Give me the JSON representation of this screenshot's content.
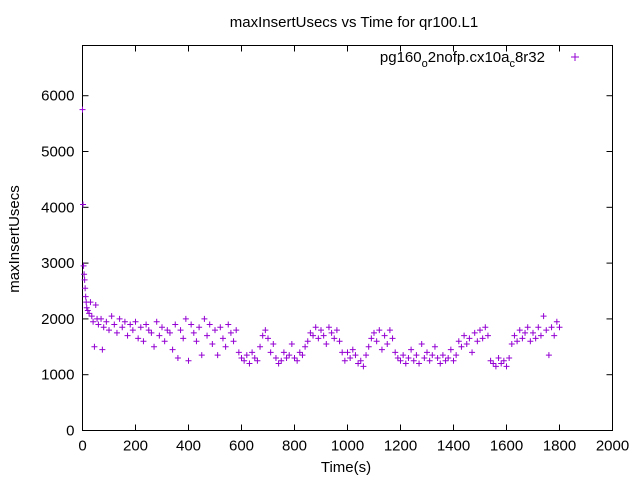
{
  "chart_data": {
    "type": "scatter",
    "title": "maxInsertUsecs vs Time for qr100.L1",
    "xlabel": "Time(s)",
    "ylabel": "maxInsertUsecs",
    "xlim": [
      0,
      2000
    ],
    "ylim": [
      0,
      6900
    ],
    "xticks": [
      0,
      200,
      400,
      600,
      800,
      1000,
      1200,
      1400,
      1600,
      1800,
      2000
    ],
    "yticks": [
      0,
      1000,
      2000,
      3000,
      4000,
      5000,
      6000
    ],
    "grid": false,
    "legend_position": "top-right",
    "marker": "plus",
    "series": [
      {
        "name_parts": [
          "pg160",
          "o",
          "2nofp.cx10a",
          "c",
          "8r32"
        ],
        "color": "#9400d3",
        "points": [
          [
            0,
            5750
          ],
          [
            2,
            4050
          ],
          [
            4,
            2950
          ],
          [
            6,
            2800
          ],
          [
            8,
            2700
          ],
          [
            10,
            2550
          ],
          [
            12,
            2400
          ],
          [
            14,
            2300
          ],
          [
            16,
            2200
          ],
          [
            20,
            2150
          ],
          [
            25,
            2100
          ],
          [
            30,
            2300
          ],
          [
            35,
            2050
          ],
          [
            40,
            1950
          ],
          [
            45,
            1500
          ],
          [
            50,
            2250
          ],
          [
            55,
            2000
          ],
          [
            60,
            1900
          ],
          [
            70,
            2000
          ],
          [
            75,
            1450
          ],
          [
            80,
            1850
          ],
          [
            90,
            1950
          ],
          [
            100,
            1800
          ],
          [
            110,
            2050
          ],
          [
            120,
            1900
          ],
          [
            130,
            1750
          ],
          [
            140,
            2000
          ],
          [
            150,
            1850
          ],
          [
            160,
            1950
          ],
          [
            170,
            1700
          ],
          [
            180,
            1900
          ],
          [
            190,
            1800
          ],
          [
            200,
            1950
          ],
          [
            210,
            1650
          ],
          [
            220,
            1850
          ],
          [
            230,
            1600
          ],
          [
            240,
            1900
          ],
          [
            250,
            1800
          ],
          [
            260,
            1750
          ],
          [
            270,
            1500
          ],
          [
            280,
            1950
          ],
          [
            290,
            1700
          ],
          [
            300,
            1850
          ],
          [
            310,
            1600
          ],
          [
            320,
            1800
          ],
          [
            330,
            1750
          ],
          [
            340,
            1450
          ],
          [
            350,
            1900
          ],
          [
            360,
            1300
          ],
          [
            370,
            1800
          ],
          [
            380,
            1650
          ],
          [
            390,
            2000
          ],
          [
            400,
            1250
          ],
          [
            410,
            1900
          ],
          [
            420,
            1750
          ],
          [
            430,
            1600
          ],
          [
            440,
            1850
          ],
          [
            450,
            1350
          ],
          [
            460,
            2000
          ],
          [
            470,
            1700
          ],
          [
            480,
            1900
          ],
          [
            490,
            1550
          ],
          [
            500,
            1800
          ],
          [
            510,
            1350
          ],
          [
            520,
            1850
          ],
          [
            530,
            1650
          ],
          [
            540,
            1500
          ],
          [
            550,
            1900
          ],
          [
            560,
            1750
          ],
          [
            570,
            1600
          ],
          [
            580,
            1800
          ],
          [
            590,
            1400
          ],
          [
            600,
            1300
          ],
          [
            610,
            1250
          ],
          [
            620,
            1350
          ],
          [
            630,
            1200
          ],
          [
            640,
            1400
          ],
          [
            650,
            1300
          ],
          [
            660,
            1250
          ],
          [
            670,
            1500
          ],
          [
            680,
            1700
          ],
          [
            690,
            1800
          ],
          [
            700,
            1650
          ],
          [
            710,
            1400
          ],
          [
            720,
            1550
          ],
          [
            730,
            1300
          ],
          [
            740,
            1200
          ],
          [
            750,
            1250
          ],
          [
            760,
            1400
          ],
          [
            770,
            1300
          ],
          [
            780,
            1350
          ],
          [
            790,
            1550
          ],
          [
            800,
            1300
          ],
          [
            810,
            1250
          ],
          [
            820,
            1400
          ],
          [
            830,
            1350
          ],
          [
            840,
            1500
          ],
          [
            850,
            1600
          ],
          [
            860,
            1750
          ],
          [
            870,
            1700
          ],
          [
            880,
            1850
          ],
          [
            890,
            1650
          ],
          [
            900,
            1800
          ],
          [
            910,
            1700
          ],
          [
            920,
            1550
          ],
          [
            930,
            1850
          ],
          [
            940,
            1750
          ],
          [
            950,
            1650
          ],
          [
            960,
            1800
          ],
          [
            970,
            1600
          ],
          [
            980,
            1400
          ],
          [
            990,
            1250
          ],
          [
            1000,
            1400
          ],
          [
            1010,
            1300
          ],
          [
            1020,
            1450
          ],
          [
            1030,
            1350
          ],
          [
            1040,
            1200
          ],
          [
            1050,
            1250
          ],
          [
            1060,
            1150
          ],
          [
            1070,
            1350
          ],
          [
            1080,
            1500
          ],
          [
            1090,
            1650
          ],
          [
            1100,
            1750
          ],
          [
            1110,
            1600
          ],
          [
            1120,
            1800
          ],
          [
            1130,
            1450
          ],
          [
            1140,
            1700
          ],
          [
            1150,
            1550
          ],
          [
            1160,
            1800
          ],
          [
            1170,
            1650
          ],
          [
            1180,
            1400
          ],
          [
            1190,
            1300
          ],
          [
            1200,
            1250
          ],
          [
            1210,
            1350
          ],
          [
            1220,
            1200
          ],
          [
            1230,
            1300
          ],
          [
            1240,
            1450
          ],
          [
            1250,
            1250
          ],
          [
            1260,
            1350
          ],
          [
            1270,
            1200
          ],
          [
            1280,
            1550
          ],
          [
            1290,
            1300
          ],
          [
            1300,
            1400
          ],
          [
            1310,
            1250
          ],
          [
            1320,
            1350
          ],
          [
            1330,
            1500
          ],
          [
            1340,
            1300
          ],
          [
            1350,
            1200
          ],
          [
            1360,
            1350
          ],
          [
            1370,
            1250
          ],
          [
            1380,
            1300
          ],
          [
            1390,
            1450
          ],
          [
            1400,
            1250
          ],
          [
            1410,
            1350
          ],
          [
            1420,
            1600
          ],
          [
            1430,
            1500
          ],
          [
            1440,
            1700
          ],
          [
            1450,
            1550
          ],
          [
            1460,
            1650
          ],
          [
            1470,
            1400
          ],
          [
            1480,
            1750
          ],
          [
            1490,
            1600
          ],
          [
            1500,
            1800
          ],
          [
            1510,
            1650
          ],
          [
            1520,
            1850
          ],
          [
            1530,
            1700
          ],
          [
            1540,
            1250
          ],
          [
            1550,
            1200
          ],
          [
            1560,
            1150
          ],
          [
            1570,
            1300
          ],
          [
            1580,
            1200
          ],
          [
            1590,
            1250
          ],
          [
            1600,
            1150
          ],
          [
            1610,
            1300
          ],
          [
            1620,
            1550
          ],
          [
            1630,
            1700
          ],
          [
            1640,
            1600
          ],
          [
            1650,
            1800
          ],
          [
            1660,
            1650
          ],
          [
            1670,
            1750
          ],
          [
            1680,
            1850
          ],
          [
            1690,
            1600
          ],
          [
            1700,
            1750
          ],
          [
            1710,
            1650
          ],
          [
            1720,
            1850
          ],
          [
            1730,
            1700
          ],
          [
            1740,
            2050
          ],
          [
            1750,
            1800
          ],
          [
            1760,
            1350
          ],
          [
            1770,
            1850
          ],
          [
            1780,
            1700
          ],
          [
            1790,
            1950
          ],
          [
            1800,
            1850
          ]
        ]
      }
    ]
  }
}
